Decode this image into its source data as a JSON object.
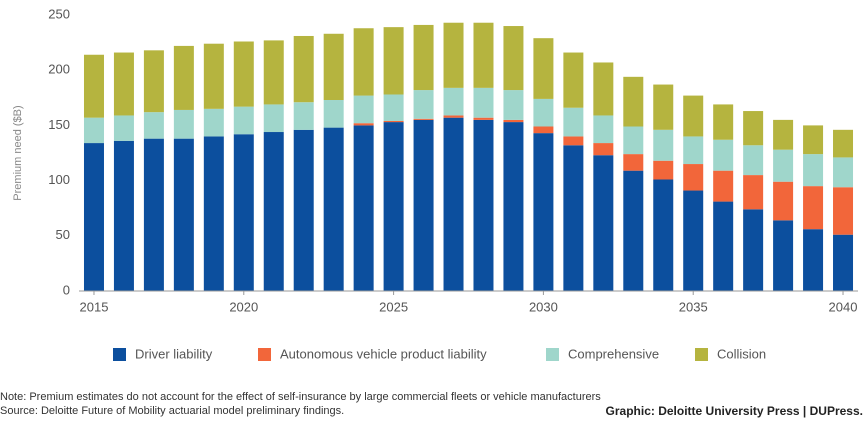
{
  "chart_data": {
    "type": "stacked_bar",
    "y_label": "Premium need ($B)",
    "x": [
      2015,
      2016,
      2017,
      2018,
      2019,
      2020,
      2021,
      2022,
      2023,
      2024,
      2025,
      2026,
      2027,
      2028,
      2029,
      2030,
      2031,
      2032,
      2033,
      2034,
      2035,
      2036,
      2037,
      2038,
      2039,
      2040
    ],
    "series": [
      {
        "name": "Driver liability",
        "color": "#0c4f9e",
        "values": [
          134,
          136,
          138,
          138,
          140,
          142,
          144,
          146,
          148,
          150,
          153,
          155,
          157,
          155,
          153,
          143,
          132,
          123,
          109,
          101,
          91,
          81,
          74,
          64,
          56,
          51
        ]
      },
      {
        "name": "Autonomous vehicle product liability",
        "color": "#f2663a",
        "values": [
          0,
          0,
          0,
          0,
          0,
          0,
          0,
          0,
          0,
          2,
          1,
          1,
          2,
          2,
          2,
          6,
          8,
          11,
          15,
          17,
          24,
          28,
          31,
          35,
          39,
          43
        ]
      },
      {
        "name": "Comprehensive",
        "color": "#9fd6cb",
        "values": [
          23,
          23,
          24,
          26,
          25,
          25,
          25,
          25,
          25,
          25,
          24,
          26,
          25,
          27,
          27,
          25,
          26,
          25,
          25,
          28,
          25,
          28,
          27,
          29,
          29,
          27
        ]
      },
      {
        "name": "Collision",
        "color": "#b5b43f",
        "values": [
          57,
          57,
          56,
          58,
          59,
          59,
          58,
          60,
          60,
          61,
          61,
          59,
          59,
          59,
          58,
          55,
          50,
          48,
          45,
          41,
          37,
          32,
          31,
          27,
          26,
          25
        ]
      }
    ],
    "xlim": [
      2014.5,
      2040.5
    ],
    "xticks": [
      2015,
      2020,
      2025,
      2030,
      2035,
      2040
    ],
    "ylim": [
      0,
      250
    ],
    "yticks": [
      0,
      50,
      100,
      150,
      200,
      250
    ],
    "grid": false,
    "notes": [
      "Note: Premium estimates do not account for the effect of self-insurance by large commercial fleets or vehicle manufacturers",
      "Source: Deloitte Future of Mobility actuarial model preliminary findings."
    ],
    "credit": "Graphic: Deloitte University Press  |  DUPress."
  }
}
